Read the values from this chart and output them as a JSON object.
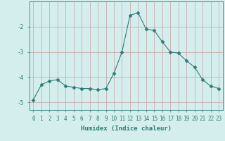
{
  "x": [
    0,
    1,
    2,
    3,
    4,
    5,
    6,
    7,
    8,
    9,
    10,
    11,
    12,
    13,
    14,
    15,
    16,
    17,
    18,
    19,
    20,
    21,
    22,
    23
  ],
  "y": [
    -4.9,
    -4.3,
    -4.15,
    -4.1,
    -4.35,
    -4.4,
    -4.45,
    -4.45,
    -4.5,
    -4.45,
    -3.85,
    -3.0,
    -1.55,
    -1.45,
    -2.1,
    -2.15,
    -2.6,
    -3.0,
    -3.05,
    -3.35,
    -3.6,
    -4.1,
    -4.35,
    -4.45
  ],
  "line_color": "#2e7d72",
  "marker": "D",
  "marker_size": 2.5,
  "xlabel": "Humidex (Indice chaleur)",
  "xlim": [
    -0.5,
    23.5
  ],
  "ylim": [
    -5.3,
    -1.0
  ],
  "yticks": [
    -5,
    -4,
    -3,
    -2
  ],
  "xticks": [
    0,
    1,
    2,
    3,
    4,
    5,
    6,
    7,
    8,
    9,
    10,
    11,
    12,
    13,
    14,
    15,
    16,
    17,
    18,
    19,
    20,
    21,
    22,
    23
  ],
  "bg_color": "#d4eeee",
  "grid_color": "#c8a0a0",
  "tick_color": "#2e7d72",
  "label_fontsize": 6.5,
  "tick_fontsize": 5.5
}
